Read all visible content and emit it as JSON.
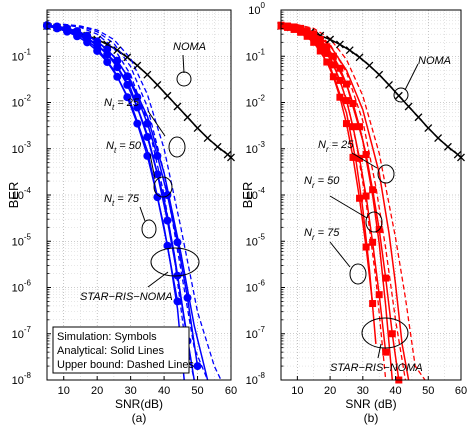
{
  "chart_data": [
    {
      "type": "line",
      "panel_label": "(a)",
      "xlabel": "SNR(dB)",
      "ylabel": "BER",
      "xlim": [
        5,
        60
      ],
      "ylim": [
        1e-08,
        1
      ],
      "yscale": "log",
      "grid": true,
      "xticks": [
        10,
        20,
        30,
        40,
        50,
        60
      ],
      "yticks": [
        -8,
        -7,
        -6,
        -5,
        -4,
        -3,
        -2,
        -1
      ],
      "ytick_labels": [
        "10",
        "10",
        "10",
        "10",
        "10",
        "10",
        "10",
        "10"
      ],
      "ytick_exponents": [
        "-8",
        "-7",
        "-6",
        "-5",
        "-4",
        "-3",
        "-2",
        "-1"
      ],
      "colors": {
        "star": "#0000ff",
        "noma": "#000000"
      },
      "series": [
        {
          "kind": "noma",
          "x": [
            5,
            8,
            11,
            14,
            17,
            20,
            23,
            26,
            29,
            32,
            35,
            38,
            41,
            44,
            47,
            50,
            53,
            56,
            59,
            60
          ],
          "y": [
            0.45,
            0.42,
            0.38,
            0.33,
            0.28,
            0.23,
            0.18,
            0.135,
            0.095,
            0.063,
            0.04,
            0.024,
            0.014,
            0.0082,
            0.0048,
            0.0028,
            0.0017,
            0.0011,
            0.00075,
            0.00065
          ]
        },
        {
          "kind": "sim",
          "x": [
            5,
            8,
            11,
            14,
            17,
            20,
            23,
            26,
            29,
            32,
            35,
            38,
            41,
            44
          ],
          "y": [
            0.45,
            0.4,
            0.34,
            0.27,
            0.2,
            0.13,
            0.075,
            0.036,
            0.013,
            0.0035,
            0.0007,
            9e-05,
            8e-06,
            5e-07
          ]
        },
        {
          "kind": "analytic",
          "x": [
            5,
            10,
            15,
            20,
            25,
            30,
            35,
            40,
            42,
            44,
            46
          ],
          "y": [
            0.45,
            0.38,
            0.27,
            0.15,
            0.05,
            0.01,
            0.0009,
            2e-05,
            3e-06,
            3.5e-07,
            1e-08
          ]
        },
        {
          "kind": "bound",
          "x": [
            5,
            10,
            15,
            20,
            25,
            30,
            35,
            40,
            43,
            46,
            49
          ],
          "y": [
            0.5,
            0.48,
            0.42,
            0.3,
            0.15,
            0.04,
            0.004,
            0.0001,
            5e-06,
            1e-07,
            1e-08
          ]
        },
        {
          "kind": "sim",
          "x": [
            5,
            8,
            11,
            14,
            17,
            20,
            23,
            26,
            29,
            32,
            35,
            38,
            41,
            44,
            47
          ],
          "y": [
            0.46,
            0.42,
            0.37,
            0.31,
            0.24,
            0.17,
            0.11,
            0.058,
            0.024,
            0.0078,
            0.0018,
            0.00028,
            2.8e-05,
            1.8e-06,
            7e-08
          ]
        },
        {
          "kind": "analytic",
          "x": [
            5,
            10,
            15,
            20,
            25,
            30,
            35,
            40,
            43,
            46,
            49
          ],
          "y": [
            0.46,
            0.4,
            0.3,
            0.18,
            0.08,
            0.02,
            0.002,
            8e-05,
            5.6e-06,
            2.2e-07,
            1e-08
          ]
        },
        {
          "kind": "bound",
          "x": [
            5,
            10,
            15,
            20,
            25,
            30,
            35,
            40,
            45,
            49,
            53
          ],
          "y": [
            0.5,
            0.48,
            0.44,
            0.34,
            0.19,
            0.06,
            0.008,
            0.0003,
            2.5e-06,
            5e-08,
            1e-08
          ]
        },
        {
          "kind": "sim",
          "x": [
            5,
            8,
            11,
            14,
            17,
            20,
            23,
            26,
            29,
            32,
            35,
            38,
            41,
            44,
            47,
            50
          ],
          "y": [
            0.47,
            0.44,
            0.4,
            0.35,
            0.28,
            0.21,
            0.14,
            0.08,
            0.037,
            0.013,
            0.0035,
            0.0007,
            0.0001,
            9.5e-06,
            6e-07,
            2e-08
          ]
        },
        {
          "kind": "analytic",
          "x": [
            5,
            10,
            15,
            20,
            25,
            30,
            35,
            40,
            45,
            49,
            53
          ],
          "y": [
            0.47,
            0.42,
            0.33,
            0.21,
            0.1,
            0.03,
            0.005,
            0.0003,
            5.6e-06,
            1.5e-07,
            1e-08
          ]
        },
        {
          "kind": "bound",
          "x": [
            5,
            10,
            15,
            20,
            25,
            30,
            35,
            40,
            45,
            50,
            55,
            57
          ],
          "y": [
            0.5,
            0.49,
            0.45,
            0.37,
            0.23,
            0.09,
            0.015,
            0.001,
            2e-05,
            3e-07,
            2e-08,
            1e-08
          ]
        }
      ],
      "annotations": [
        {
          "text": "NOMA",
          "sub": "",
          "rest": ""
        },
        {
          "text": "N",
          "sub": "t",
          "rest": " = 25"
        },
        {
          "text": "N",
          "sub": "t",
          "rest": " = 50"
        },
        {
          "text": "N",
          "sub": "t",
          "rest": " = 75"
        },
        {
          "text": "STAR−RIS−NOMA",
          "sub": "",
          "rest": ""
        }
      ],
      "legend_box": [
        "Simulation: Symbols",
        "Analytical: Solid Lines",
        "Upper bound: Dashed Lines"
      ]
    },
    {
      "type": "line",
      "panel_label": "(b)",
      "xlabel": "SNR (dB)",
      "ylabel": "BER",
      "xlim": [
        5,
        60
      ],
      "ylim": [
        1e-08,
        1
      ],
      "yscale": "log",
      "grid": true,
      "xticks": [
        10,
        20,
        30,
        40,
        50,
        60
      ],
      "yticks": [
        -8,
        -7,
        -6,
        -5,
        -4,
        -3,
        -2,
        -1,
        0
      ],
      "ytick_labels": [
        "10",
        "10",
        "10",
        "10",
        "10",
        "10",
        "10",
        "10",
        "10"
      ],
      "ytick_exponents": [
        "-8",
        "-7",
        "-6",
        "-5",
        "-4",
        "-3",
        "-2",
        "-1",
        "0"
      ],
      "colors": {
        "star": "#ff0000",
        "noma": "#000000"
      },
      "series": [
        {
          "kind": "noma",
          "x": [
            5,
            8,
            11,
            14,
            17,
            20,
            23,
            26,
            29,
            32,
            35,
            38,
            41,
            44,
            47,
            50,
            53,
            56,
            59,
            60
          ],
          "y": [
            0.45,
            0.42,
            0.38,
            0.33,
            0.28,
            0.23,
            0.18,
            0.135,
            0.095,
            0.063,
            0.04,
            0.024,
            0.014,
            0.0082,
            0.0048,
            0.0028,
            0.0017,
            0.0011,
            0.00075,
            0.00065
          ]
        },
        {
          "kind": "sim",
          "x": [
            5,
            7,
            9,
            11,
            13,
            15,
            17,
            19,
            21,
            23,
            25,
            27,
            29,
            31,
            33
          ],
          "y": [
            0.45,
            0.42,
            0.38,
            0.33,
            0.27,
            0.2,
            0.13,
            0.075,
            0.036,
            0.013,
            0.0035,
            0.00065,
            8.5e-05,
            7.5e-06,
            4.5e-07
          ]
        },
        {
          "kind": "analytic",
          "x": [
            5,
            10,
            15,
            20,
            25,
            28,
            30,
            32,
            34
          ],
          "y": [
            0.45,
            0.36,
            0.2,
            0.06,
            0.006,
            0.0005,
            5e-05,
            2.5e-06,
            6e-08
          ]
        },
        {
          "kind": "bound",
          "x": [
            5,
            10,
            15,
            20,
            25,
            28,
            31,
            34,
            37
          ],
          "y": [
            0.5,
            0.45,
            0.3,
            0.1,
            0.012,
            0.0013,
            7e-05,
            1.5e-06,
            1e-08
          ]
        },
        {
          "kind": "sim",
          "x": [
            5,
            7,
            9,
            11,
            13,
            15,
            17,
            19,
            21,
            23,
            25,
            27,
            29,
            31,
            33,
            35,
            37
          ],
          "y": [
            0.46,
            0.44,
            0.41,
            0.36,
            0.31,
            0.25,
            0.18,
            0.115,
            0.065,
            0.03,
            0.011,
            0.003,
            0.00062,
            9.5e-05,
            9.5e-06,
            7e-07,
            4e-08
          ]
        },
        {
          "kind": "analytic",
          "x": [
            5,
            10,
            15,
            20,
            25,
            30,
            33,
            35,
            37,
            39
          ],
          "y": [
            0.46,
            0.4,
            0.27,
            0.12,
            0.025,
            0.0015,
            0.0001,
            9e-06,
            4e-07,
            1e-08
          ]
        },
        {
          "kind": "bound",
          "x": [
            5,
            10,
            15,
            20,
            25,
            30,
            34,
            37,
            40,
            43
          ],
          "y": [
            0.5,
            0.47,
            0.36,
            0.18,
            0.045,
            0.004,
            0.00015,
            7e-06,
            2e-07,
            1e-08
          ]
        },
        {
          "kind": "sim",
          "x": [
            5,
            7,
            9,
            11,
            13,
            15,
            17,
            19,
            21,
            23,
            25,
            27,
            29,
            31,
            33,
            35,
            37,
            39,
            41
          ],
          "y": [
            0.47,
            0.45,
            0.43,
            0.4,
            0.35,
            0.3,
            0.23,
            0.16,
            0.1,
            0.055,
            0.025,
            0.0095,
            0.003,
            0.00075,
            0.00013,
            1.8e-05,
            1.6e-06,
            1e-07,
            1e-08
          ]
        },
        {
          "kind": "analytic",
          "x": [
            5,
            10,
            15,
            20,
            25,
            30,
            35,
            38,
            40,
            42,
            44
          ],
          "y": [
            0.47,
            0.42,
            0.32,
            0.17,
            0.05,
            0.007,
            0.0003,
            1.5e-05,
            1.2e-06,
            6e-08,
            1e-08
          ]
        },
        {
          "kind": "bound",
          "x": [
            5,
            10,
            15,
            20,
            25,
            30,
            35,
            40,
            43,
            46,
            49
          ],
          "y": [
            0.5,
            0.48,
            0.4,
            0.24,
            0.085,
            0.014,
            0.0008,
            1.2e-05,
            6e-07,
            2e-08,
            1e-08
          ]
        }
      ],
      "annotations": [
        {
          "text": "NOMA",
          "sub": "",
          "rest": ""
        },
        {
          "text": "N",
          "sub": "r",
          "rest": " = 25"
        },
        {
          "text": "N",
          "sub": "r",
          "rest": " = 50"
        },
        {
          "text": "N",
          "sub": "r",
          "rest": " = 75"
        },
        {
          "text": "STAR−RIS−NOMA",
          "sub": "",
          "rest": ""
        }
      ],
      "legend_box": []
    }
  ]
}
